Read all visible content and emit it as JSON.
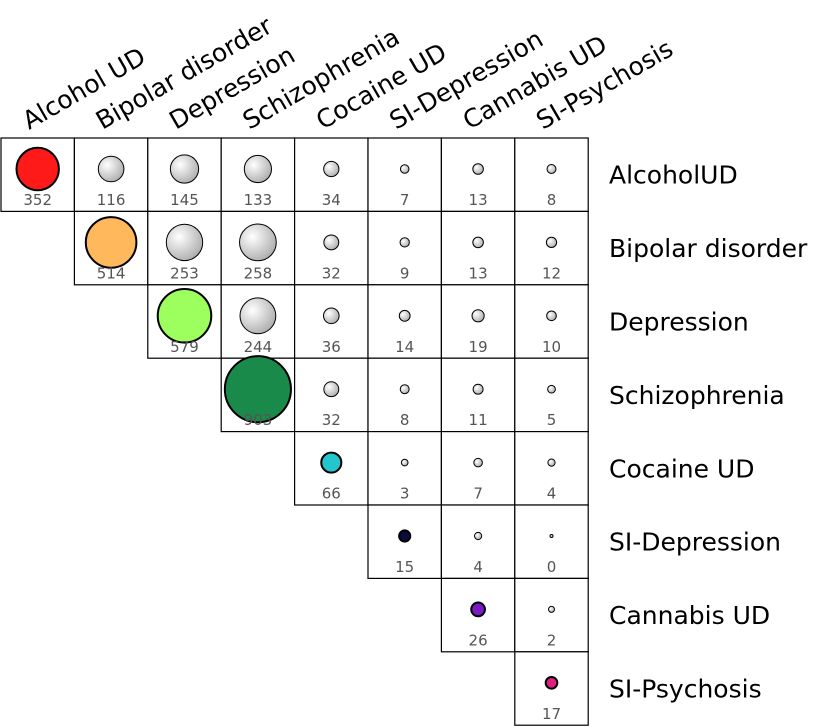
{
  "chart_data": {
    "type": "matrix",
    "columns": [
      "Alcohol UD",
      "Bipolar disorder",
      "Depression",
      "Schizophrenia",
      "Cocaine UD",
      "SI-Depression",
      "Cannabis UD",
      "SI-Psychosis"
    ],
    "rows": [
      {
        "label": "AlcoholUD",
        "values": [
          352,
          116,
          145,
          133,
          34,
          7,
          13,
          8
        ]
      },
      {
        "label": "Bipolar disorder",
        "values": [
          null,
          514,
          253,
          258,
          32,
          9,
          13,
          12
        ]
      },
      {
        "label": "Depression",
        "values": [
          null,
          null,
          579,
          244,
          36,
          14,
          19,
          10
        ]
      },
      {
        "label": "Schizophrenia",
        "values": [
          null,
          null,
          null,
          903,
          32,
          8,
          11,
          5
        ]
      },
      {
        "label": "Cocaine UD",
        "values": [
          null,
          null,
          null,
          null,
          66,
          3,
          7,
          4
        ]
      },
      {
        "label": "SI-Depression",
        "values": [
          null,
          null,
          null,
          null,
          null,
          15,
          4,
          0
        ]
      },
      {
        "label": "Cannabis UD",
        "values": [
          null,
          null,
          null,
          null,
          null,
          null,
          26,
          2
        ]
      },
      {
        "label": "SI-Psychosis",
        "values": [
          null,
          null,
          null,
          null,
          null,
          null,
          null,
          17
        ]
      }
    ],
    "diagonal_colors": [
      "#ff1a1a",
      "#ffb85c",
      "#9dff5e",
      "#1a8a4a",
      "#22c6cc",
      "#0b0b3e",
      "#7a1ac4",
      "#e0207e"
    ]
  }
}
